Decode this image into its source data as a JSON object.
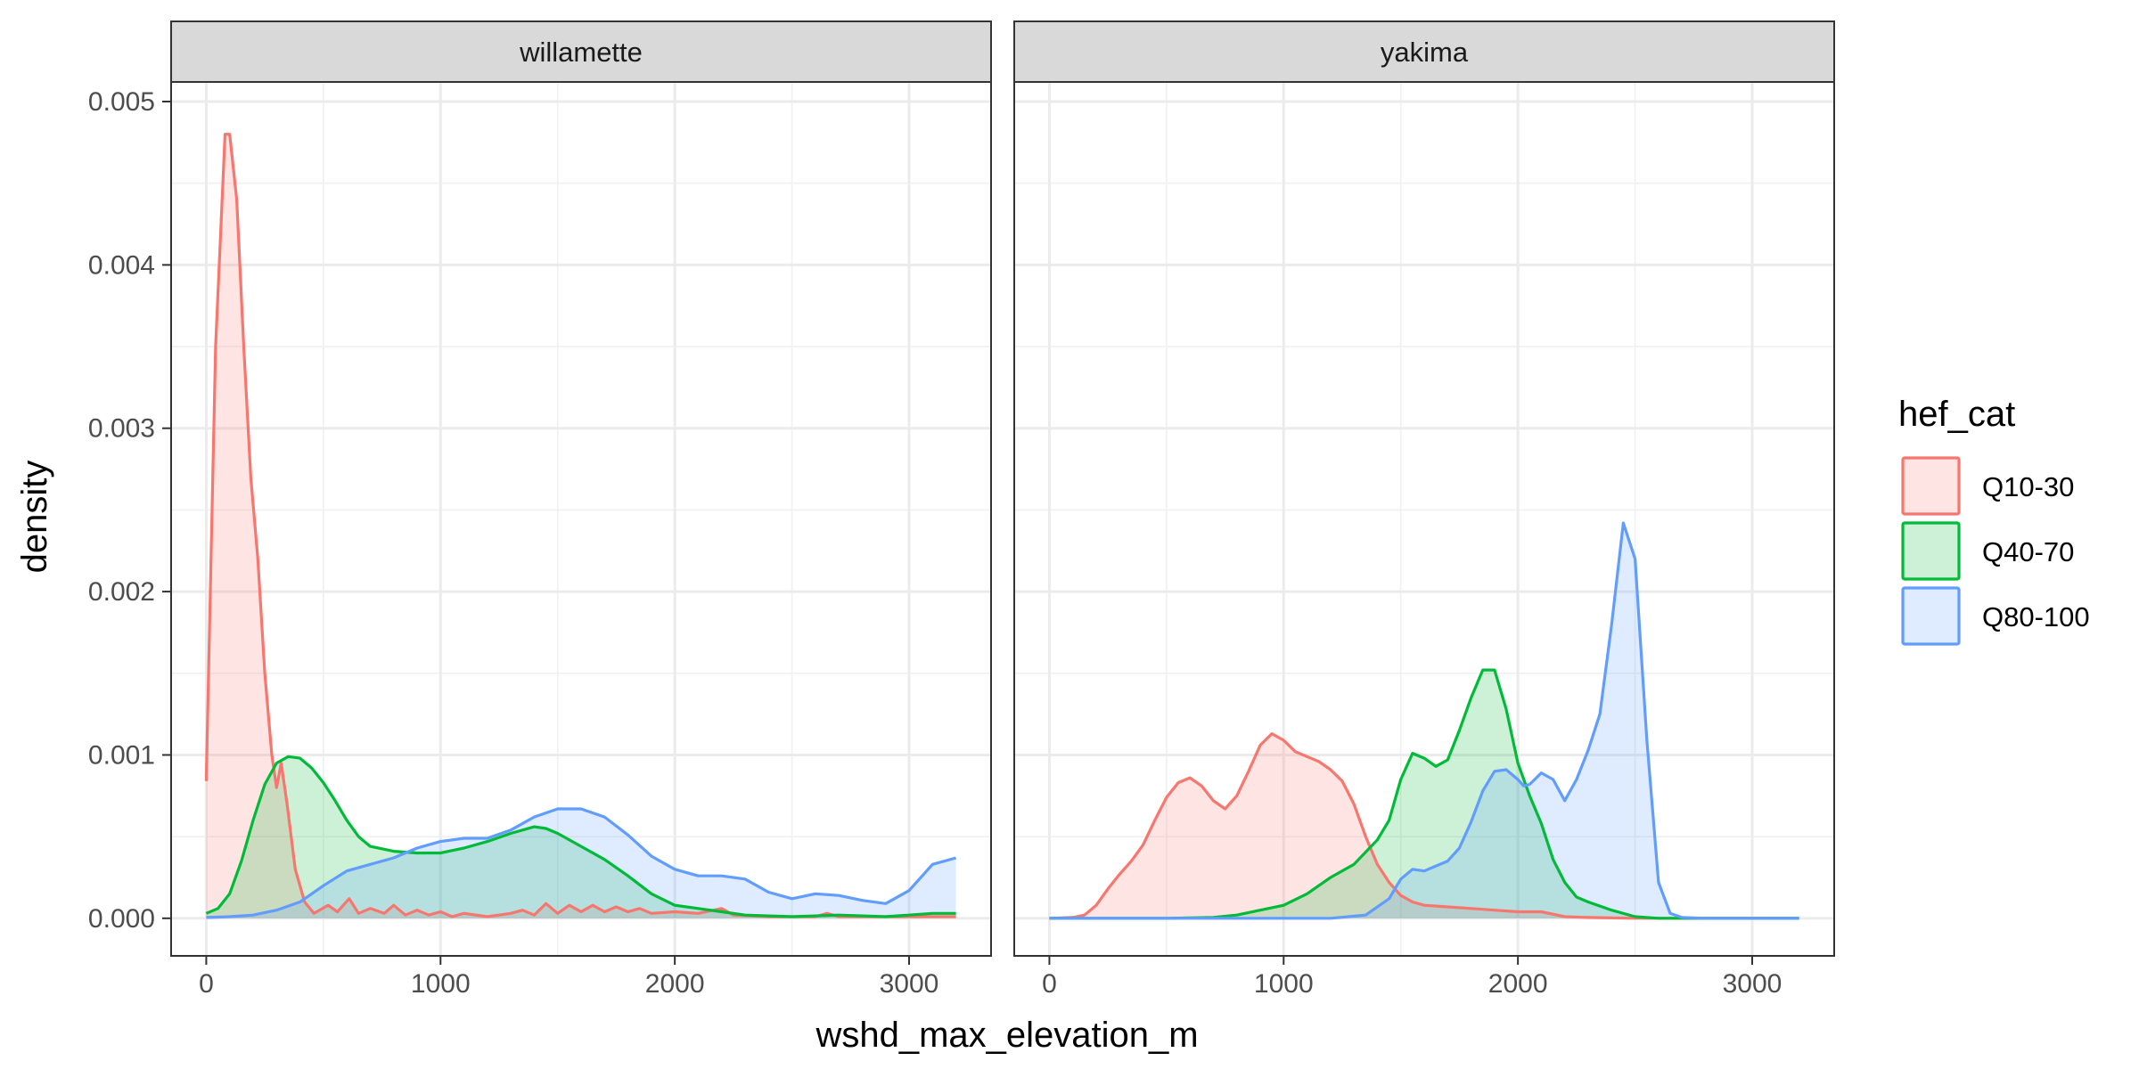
{
  "chart_data": {
    "type": "area",
    "xlabel": "wshd_max_elevation_m",
    "ylabel": "density",
    "xlim": [
      -150,
      3350
    ],
    "ylim": [
      -0.00023,
      0.00512
    ],
    "x_ticks": [
      0,
      1000,
      2000,
      3000
    ],
    "x_tick_labels": [
      "0",
      "1000",
      "2000",
      "3000"
    ],
    "y_ticks": [
      0,
      0.001,
      0.002,
      0.003,
      0.004,
      0.005
    ],
    "y_tick_labels": [
      "0.000",
      "0.001",
      "0.002",
      "0.003",
      "0.004",
      "0.005"
    ],
    "grid": true,
    "legend": {
      "title": "hef_cat",
      "position": "right",
      "items": [
        {
          "label": "Q10-30",
          "color": "#F8766D"
        },
        {
          "label": "Q40-70",
          "color": "#00BA38"
        },
        {
          "label": "Q80-100",
          "color": "#619CFF"
        }
      ]
    },
    "panels": [
      {
        "strip": "willamette",
        "series": [
          {
            "legend_index": 0,
            "color": "#F8766D",
            "points": [
              [
                0,
                0.00084
              ],
              [
                40,
                0.0035
              ],
              [
                80,
                0.0048
              ],
              [
                100,
                0.0048
              ],
              [
                130,
                0.0044
              ],
              [
                160,
                0.0035
              ],
              [
                190,
                0.0027
              ],
              [
                220,
                0.0022
              ],
              [
                250,
                0.0015
              ],
              [
                280,
                0.001
              ],
              [
                300,
                0.0008
              ],
              [
                320,
                0.00095
              ],
              [
                345,
                0.0007
              ],
              [
                380,
                0.0003
              ],
              [
                420,
                0.0001
              ],
              [
                460,
                3e-05
              ],
              [
                520,
                8e-05
              ],
              [
                560,
                4e-05
              ],
              [
                610,
                0.00012
              ],
              [
                650,
                3e-05
              ],
              [
                700,
                6e-05
              ],
              [
                760,
                3e-05
              ],
              [
                800,
                8e-05
              ],
              [
                850,
                2e-05
              ],
              [
                900,
                5e-05
              ],
              [
                950,
                2e-05
              ],
              [
                1000,
                4e-05
              ],
              [
                1050,
                1e-05
              ],
              [
                1100,
                3e-05
              ],
              [
                1200,
                1e-05
              ],
              [
                1300,
                3e-05
              ],
              [
                1350,
                5e-05
              ],
              [
                1400,
                2e-05
              ],
              [
                1450,
                9e-05
              ],
              [
                1500,
                3e-05
              ],
              [
                1550,
                8e-05
              ],
              [
                1600,
                4e-05
              ],
              [
                1650,
                8e-05
              ],
              [
                1700,
                4e-05
              ],
              [
                1750,
                7e-05
              ],
              [
                1800,
                4e-05
              ],
              [
                1850,
                6e-05
              ],
              [
                1900,
                3e-05
              ],
              [
                2000,
                4e-05
              ],
              [
                2100,
                3e-05
              ],
              [
                2200,
                6e-05
              ],
              [
                2250,
                2e-05
              ],
              [
                2400,
                1e-05
              ],
              [
                2600,
                1e-05
              ],
              [
                2650,
                3e-05
              ],
              [
                2700,
                1e-05
              ],
              [
                3000,
                1e-05
              ],
              [
                3200,
                1e-05
              ]
            ]
          },
          {
            "legend_index": 1,
            "color": "#00BA38",
            "points": [
              [
                0,
                3e-05
              ],
              [
                50,
                6e-05
              ],
              [
                100,
                0.00015
              ],
              [
                150,
                0.00035
              ],
              [
                200,
                0.0006
              ],
              [
                250,
                0.00082
              ],
              [
                300,
                0.00095
              ],
              [
                350,
                0.00099
              ],
              [
                400,
                0.00098
              ],
              [
                450,
                0.00092
              ],
              [
                500,
                0.00083
              ],
              [
                550,
                0.00072
              ],
              [
                600,
                0.0006
              ],
              [
                650,
                0.0005
              ],
              [
                700,
                0.00044
              ],
              [
                800,
                0.00041
              ],
              [
                900,
                0.0004
              ],
              [
                1000,
                0.0004
              ],
              [
                1100,
                0.00043
              ],
              [
                1200,
                0.00047
              ],
              [
                1300,
                0.00052
              ],
              [
                1400,
                0.00056
              ],
              [
                1450,
                0.00055
              ],
              [
                1500,
                0.00052
              ],
              [
                1600,
                0.00044
              ],
              [
                1700,
                0.00036
              ],
              [
                1800,
                0.00026
              ],
              [
                1900,
                0.00015
              ],
              [
                2000,
                8e-05
              ],
              [
                2100,
                6e-05
              ],
              [
                2200,
                4e-05
              ],
              [
                2300,
                2e-05
              ],
              [
                2500,
                1e-05
              ],
              [
                2700,
                2e-05
              ],
              [
                2900,
                1e-05
              ],
              [
                3000,
                2e-05
              ],
              [
                3100,
                3e-05
              ],
              [
                3200,
                3e-05
              ]
            ]
          },
          {
            "legend_index": 2,
            "color": "#619CFF",
            "points": [
              [
                0,
                5e-06
              ],
              [
                100,
                1e-05
              ],
              [
                200,
                2e-05
              ],
              [
                300,
                5e-05
              ],
              [
                400,
                0.0001
              ],
              [
                500,
                0.0002
              ],
              [
                600,
                0.00029
              ],
              [
                700,
                0.00033
              ],
              [
                800,
                0.00037
              ],
              [
                900,
                0.00043
              ],
              [
                1000,
                0.00047
              ],
              [
                1100,
                0.00049
              ],
              [
                1200,
                0.00049
              ],
              [
                1300,
                0.00054
              ],
              [
                1400,
                0.00062
              ],
              [
                1500,
                0.00067
              ],
              [
                1600,
                0.00067
              ],
              [
                1700,
                0.00062
              ],
              [
                1800,
                0.00051
              ],
              [
                1900,
                0.00038
              ],
              [
                2000,
                0.0003
              ],
              [
                2100,
                0.00026
              ],
              [
                2200,
                0.00026
              ],
              [
                2300,
                0.00024
              ],
              [
                2400,
                0.00016
              ],
              [
                2500,
                0.00012
              ],
              [
                2600,
                0.00015
              ],
              [
                2700,
                0.00014
              ],
              [
                2800,
                0.00011
              ],
              [
                2900,
                9e-05
              ],
              [
                3000,
                0.00017
              ],
              [
                3100,
                0.00033
              ],
              [
                3200,
                0.00037
              ]
            ]
          }
        ]
      },
      {
        "strip": "yakima",
        "series": [
          {
            "legend_index": 0,
            "color": "#F8766D",
            "points": [
              [
                0,
                0
              ],
              [
                100,
                5e-06
              ],
              [
                150,
                2e-05
              ],
              [
                200,
                8e-05
              ],
              [
                250,
                0.00018
              ],
              [
                300,
                0.00027
              ],
              [
                350,
                0.00035
              ],
              [
                400,
                0.00045
              ],
              [
                450,
                0.0006
              ],
              [
                500,
                0.00074
              ],
              [
                550,
                0.00083
              ],
              [
                600,
                0.00086
              ],
              [
                650,
                0.00081
              ],
              [
                700,
                0.00072
              ],
              [
                750,
                0.00067
              ],
              [
                800,
                0.00075
              ],
              [
                850,
                0.0009
              ],
              [
                900,
                0.00106
              ],
              [
                950,
                0.00113
              ],
              [
                1000,
                0.00109
              ],
              [
                1050,
                0.00102
              ],
              [
                1100,
                0.00099
              ],
              [
                1150,
                0.00096
              ],
              [
                1200,
                0.00091
              ],
              [
                1250,
                0.00084
              ],
              [
                1300,
                0.0007
              ],
              [
                1350,
                0.0005
              ],
              [
                1400,
                0.00033
              ],
              [
                1450,
                0.00022
              ],
              [
                1500,
                0.00014
              ],
              [
                1550,
                0.0001
              ],
              [
                1600,
                8e-05
              ],
              [
                1700,
                7e-05
              ],
              [
                1800,
                6e-05
              ],
              [
                1900,
                5e-05
              ],
              [
                2000,
                4e-05
              ],
              [
                2100,
                4e-05
              ],
              [
                2200,
                1e-05
              ],
              [
                2300,
                5e-06
              ],
              [
                2500,
                0
              ],
              [
                3200,
                0
              ]
            ]
          },
          {
            "legend_index": 1,
            "color": "#00BA38",
            "points": [
              [
                0,
                0
              ],
              [
                500,
                0
              ],
              [
                700,
                5e-06
              ],
              [
                800,
                2e-05
              ],
              [
                900,
                5e-05
              ],
              [
                1000,
                8e-05
              ],
              [
                1100,
                0.00015
              ],
              [
                1200,
                0.00025
              ],
              [
                1300,
                0.00033
              ],
              [
                1400,
                0.00048
              ],
              [
                1450,
                0.0006
              ],
              [
                1500,
                0.00085
              ],
              [
                1550,
                0.00101
              ],
              [
                1600,
                0.00098
              ],
              [
                1650,
                0.00093
              ],
              [
                1700,
                0.00097
              ],
              [
                1750,
                0.00115
              ],
              [
                1800,
                0.00135
              ],
              [
                1850,
                0.00152
              ],
              [
                1900,
                0.00152
              ],
              [
                1950,
                0.00128
              ],
              [
                2000,
                0.00095
              ],
              [
                2050,
                0.00075
              ],
              [
                2100,
                0.00058
              ],
              [
                2150,
                0.00036
              ],
              [
                2200,
                0.00022
              ],
              [
                2250,
                0.00013
              ],
              [
                2300,
                0.0001
              ],
              [
                2400,
                5e-05
              ],
              [
                2500,
                1e-05
              ],
              [
                2600,
                0
              ],
              [
                3200,
                0
              ]
            ]
          },
          {
            "legend_index": 2,
            "color": "#619CFF",
            "points": [
              [
                0,
                0
              ],
              [
                1200,
                0
              ],
              [
                1350,
                2e-05
              ],
              [
                1450,
                0.00012
              ],
              [
                1500,
                0.00024
              ],
              [
                1550,
                0.0003
              ],
              [
                1600,
                0.00029
              ],
              [
                1650,
                0.00032
              ],
              [
                1700,
                0.00035
              ],
              [
                1750,
                0.00043
              ],
              [
                1800,
                0.00059
              ],
              [
                1850,
                0.00078
              ],
              [
                1900,
                0.0009
              ],
              [
                1950,
                0.00091
              ],
              [
                2000,
                0.00085
              ],
              [
                2025,
                0.00081
              ],
              [
                2050,
                0.00082
              ],
              [
                2100,
                0.00089
              ],
              [
                2150,
                0.00085
              ],
              [
                2200,
                0.00072
              ],
              [
                2250,
                0.00085
              ],
              [
                2300,
                0.00103
              ],
              [
                2350,
                0.00125
              ],
              [
                2400,
                0.0018
              ],
              [
                2450,
                0.00242
              ],
              [
                2500,
                0.0022
              ],
              [
                2550,
                0.0011
              ],
              [
                2600,
                0.00022
              ],
              [
                2650,
                3e-05
              ],
              [
                2700,
                5e-06
              ],
              [
                2800,
                0
              ],
              [
                3200,
                0
              ]
            ]
          }
        ]
      }
    ]
  }
}
